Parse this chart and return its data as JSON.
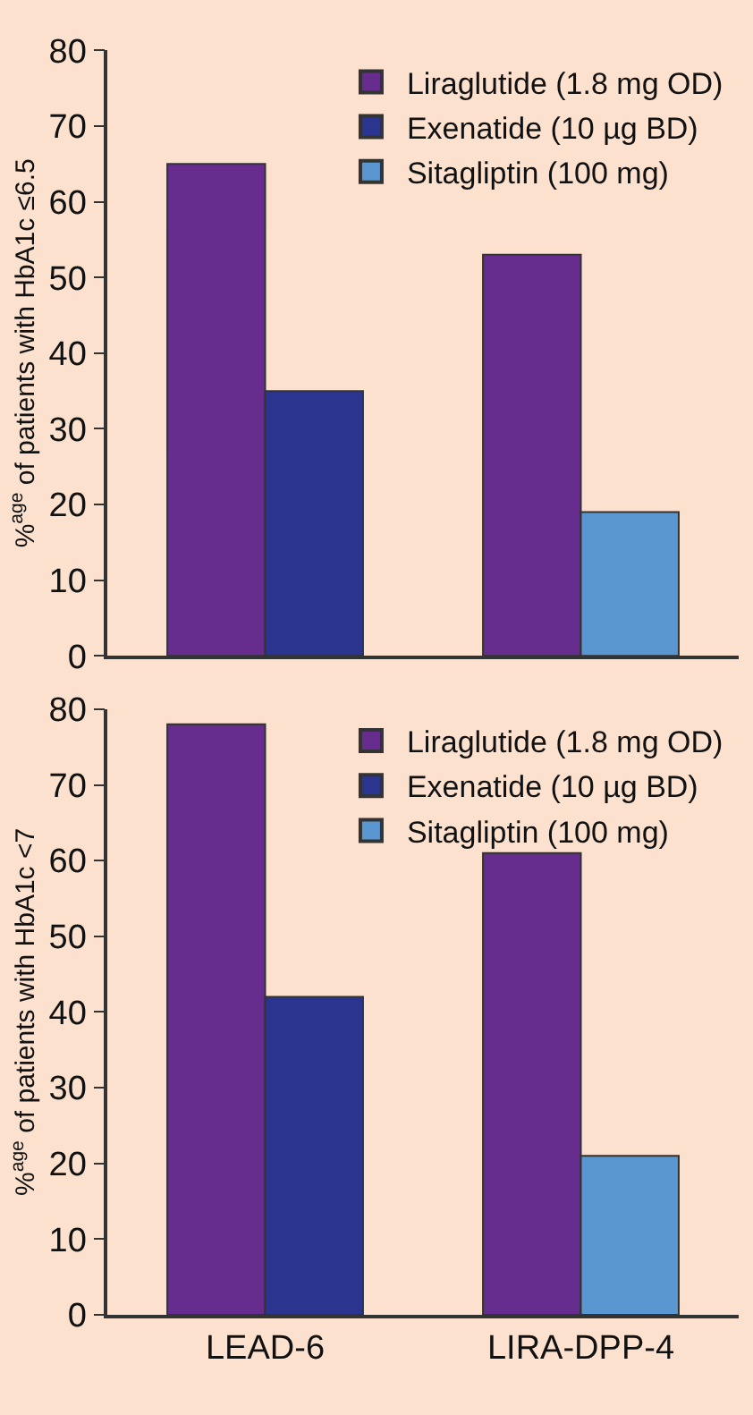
{
  "chart_data": [
    {
      "type": "bar",
      "ylabel": "%$^{age}$ of patients with HbA1c ≤6.5",
      "categories": [
        null,
        null
      ],
      "tick_labels": "y",
      "ylim": [
        0,
        80
      ],
      "yticks": [
        0,
        10,
        20,
        30,
        40,
        50,
        60,
        70,
        80
      ],
      "grid": false,
      "legend": "top right",
      "series": [
        {
          "name": "Liraglutide (1.8 mg OD)",
          "color": "#662d8f",
          "values": [
            65,
            53
          ]
        },
        {
          "name": "Exenatide (10 µg BD)",
          "color": "#2b3590",
          "values": [
            35,
            null
          ]
        },
        {
          "name": "Sitagliptin (100 mg)",
          "color": "#5a96cf",
          "values": [
            null,
            19
          ]
        }
      ]
    },
    {
      "type": "bar",
      "ylabel": "%$^{age}$ of patients with HbA1c <7",
      "categories": [
        "LEAD-6",
        "LIRA-DPP-4"
      ],
      "ylim": [
        0,
        80
      ],
      "yticks": [
        0,
        10,
        20,
        30,
        40,
        50,
        60,
        70,
        80
      ],
      "grid": false,
      "legend": "top right",
      "series": [
        {
          "name": "Liraglutide (1.8 mg OD)",
          "color": "#662d8f",
          "values": [
            78,
            61
          ]
        },
        {
          "name": "Exenatide (10 µg BD)",
          "color": "#2b3590",
          "values": [
            42,
            null
          ]
        },
        {
          "name": "Sitagliptin (100 mg)",
          "color": "#5a96cf",
          "values": [
            null,
            21
          ]
        }
      ]
    }
  ]
}
